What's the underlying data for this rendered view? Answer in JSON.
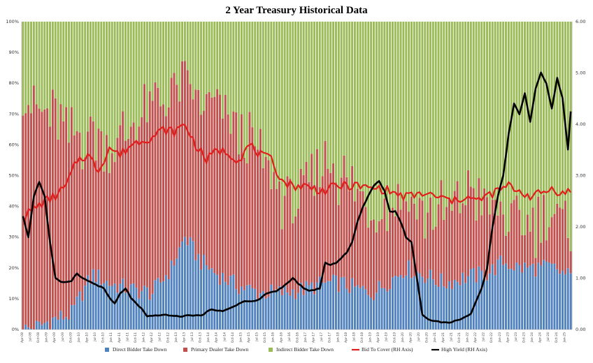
{
  "chart_data": {
    "type": "bar",
    "title": "2 Year Treasury  Historical Data",
    "ylim_left": [
      0,
      100
    ],
    "ylim_right": [
      0,
      6
    ],
    "left_ticks": [
      "0%",
      "10%",
      "20%",
      "30%",
      "40%",
      "50%",
      "60%",
      "70%",
      "80%",
      "90%",
      "100%"
    ],
    "right_ticks": [
      "0.00",
      "1.00",
      "2.00",
      "3.00",
      "4.00",
      "5.00",
      "6.00"
    ],
    "n_auctions": 204,
    "x_tick_labels": [
      "Apr-08",
      "Jul-08",
      "Oct-08",
      "Jan-09",
      "Apr-09",
      "Jul-09",
      "Oct-09",
      "Jan-10",
      "Apr-10",
      "Jul-10",
      "Oct-10",
      "Jan-11",
      "Apr-11",
      "Jul-11",
      "Oct-11",
      "Jan-12",
      "Apr-12",
      "Jul-12",
      "Oct-12",
      "Jan-13",
      "Apr-13",
      "Jul-13",
      "Oct-13",
      "Jan-14",
      "Apr-14",
      "Jul-14",
      "Oct-14",
      "Jan-15",
      "Apr-15",
      "Jul-15",
      "Oct-15",
      "Jan-16",
      "Apr-16",
      "Jul-16",
      "Oct-16",
      "Jan-17",
      "Apr-17",
      "Jul-17",
      "Oct-17",
      "Jan-18",
      "Apr-18",
      "Jul-18",
      "Oct-18",
      "Jan-19",
      "Apr-19",
      "Jul-19",
      "Oct-19",
      "Jan-20",
      "Apr-20",
      "Jul-20",
      "Oct-20",
      "Jan-21",
      "Apr-21",
      "Jul-21",
      "Oct-21",
      "Jan-22",
      "Apr-22",
      "Jul-22",
      "Oct-22",
      "Jan-23",
      "Apr-23",
      "Jul-23",
      "Oct-23",
      "Jan-24",
      "Apr-24",
      "Jul-24",
      "Oct-24",
      "Jan-25"
    ],
    "stacked_series_anchors": {
      "direct_pct": [
        [
          0,
          0
        ],
        [
          6,
          1
        ],
        [
          10,
          3
        ],
        [
          18,
          5
        ],
        [
          22,
          12
        ],
        [
          26,
          18
        ],
        [
          32,
          15
        ],
        [
          40,
          13
        ],
        [
          48,
          12
        ],
        [
          55,
          20
        ],
        [
          60,
          30
        ],
        [
          66,
          22
        ],
        [
          72,
          18
        ],
        [
          80,
          14
        ],
        [
          88,
          12
        ],
        [
          96,
          12
        ],
        [
          104,
          13
        ],
        [
          112,
          15
        ],
        [
          118,
          15
        ],
        [
          124,
          13
        ],
        [
          130,
          12
        ],
        [
          136,
          16
        ],
        [
          142,
          20
        ],
        [
          148,
          18
        ],
        [
          156,
          15
        ],
        [
          164,
          17
        ],
        [
          172,
          18
        ],
        [
          178,
          22
        ],
        [
          184,
          20
        ],
        [
          190,
          20
        ],
        [
          196,
          20
        ],
        [
          203,
          17
        ]
      ],
      "dealer_pct": [
        [
          0,
          78
        ],
        [
          6,
          68
        ],
        [
          10,
          68
        ],
        [
          16,
          60
        ],
        [
          22,
          50
        ],
        [
          28,
          45
        ],
        [
          34,
          45
        ],
        [
          42,
          55
        ],
        [
          48,
          60
        ],
        [
          54,
          58
        ],
        [
          60,
          50
        ],
        [
          66,
          50
        ],
        [
          72,
          55
        ],
        [
          80,
          50
        ],
        [
          88,
          45
        ],
        [
          96,
          30
        ],
        [
          104,
          30
        ],
        [
          112,
          40
        ],
        [
          118,
          35
        ],
        [
          124,
          30
        ],
        [
          130,
          28
        ],
        [
          136,
          25
        ],
        [
          142,
          25
        ],
        [
          148,
          20
        ],
        [
          154,
          22
        ],
        [
          160,
          25
        ],
        [
          166,
          28
        ],
        [
          172,
          22
        ],
        [
          178,
          15
        ],
        [
          184,
          14
        ],
        [
          190,
          15
        ],
        [
          196,
          16
        ],
        [
          203,
          15
        ]
      ]
    },
    "bid_to_cover_anchors": [
      [
        0,
        2.2
      ],
      [
        4,
        2.35
      ],
      [
        8,
        2.5
      ],
      [
        12,
        2.6
      ],
      [
        16,
        2.8
      ],
      [
        20,
        3.3
      ],
      [
        24,
        3.4
      ],
      [
        28,
        3.1
      ],
      [
        32,
        3.55
      ],
      [
        36,
        3.4
      ],
      [
        40,
        3.6
      ],
      [
        44,
        3.7
      ],
      [
        48,
        3.75
      ],
      [
        52,
        3.9
      ],
      [
        56,
        3.85
      ],
      [
        60,
        4.0
      ],
      [
        64,
        3.6
      ],
      [
        68,
        3.3
      ],
      [
        72,
        3.5
      ],
      [
        76,
        3.45
      ],
      [
        80,
        3.3
      ],
      [
        84,
        3.6
      ],
      [
        88,
        3.4
      ],
      [
        92,
        3.3
      ],
      [
        96,
        2.9
      ],
      [
        100,
        2.8
      ],
      [
        104,
        2.8
      ],
      [
        108,
        2.75
      ],
      [
        112,
        2.7
      ],
      [
        116,
        2.8
      ],
      [
        120,
        2.8
      ],
      [
        124,
        2.8
      ],
      [
        128,
        2.75
      ],
      [
        132,
        2.75
      ],
      [
        136,
        2.7
      ],
      [
        140,
        2.6
      ],
      [
        144,
        2.6
      ],
      [
        148,
        2.65
      ],
      [
        152,
        2.6
      ],
      [
        156,
        2.55
      ],
      [
        160,
        2.5
      ],
      [
        164,
        2.6
      ],
      [
        168,
        2.5
      ],
      [
        172,
        2.6
      ],
      [
        176,
        2.7
      ],
      [
        180,
        2.8
      ],
      [
        184,
        2.7
      ],
      [
        188,
        2.6
      ],
      [
        192,
        2.65
      ],
      [
        196,
        2.75
      ],
      [
        200,
        2.65
      ],
      [
        203,
        2.7
      ]
    ],
    "high_yield_anchors": [
      [
        0,
        2.2
      ],
      [
        2,
        1.8
      ],
      [
        4,
        2.6
      ],
      [
        6,
        2.88
      ],
      [
        8,
        2.6
      ],
      [
        10,
        1.7
      ],
      [
        12,
        1.0
      ],
      [
        14,
        0.92
      ],
      [
        16,
        0.93
      ],
      [
        18,
        0.95
      ],
      [
        20,
        1.1
      ],
      [
        22,
        1.0
      ],
      [
        24,
        0.95
      ],
      [
        26,
        0.9
      ],
      [
        28,
        0.85
      ],
      [
        30,
        0.8
      ],
      [
        32,
        0.62
      ],
      [
        34,
        0.5
      ],
      [
        36,
        0.7
      ],
      [
        38,
        0.8
      ],
      [
        40,
        0.62
      ],
      [
        42,
        0.5
      ],
      [
        44,
        0.4
      ],
      [
        46,
        0.25
      ],
      [
        50,
        0.28
      ],
      [
        54,
        0.28
      ],
      [
        58,
        0.25
      ],
      [
        62,
        0.28
      ],
      [
        66,
        0.27
      ],
      [
        70,
        0.4
      ],
      [
        74,
        0.35
      ],
      [
        78,
        0.45
      ],
      [
        82,
        0.55
      ],
      [
        86,
        0.55
      ],
      [
        88,
        0.6
      ],
      [
        90,
        0.7
      ],
      [
        94,
        0.75
      ],
      [
        98,
        0.9
      ],
      [
        100,
        1.0
      ],
      [
        102,
        0.9
      ],
      [
        104,
        0.8
      ],
      [
        106,
        0.75
      ],
      [
        110,
        0.8
      ],
      [
        112,
        1.3
      ],
      [
        114,
        1.25
      ],
      [
        116,
        1.3
      ],
      [
        118,
        1.4
      ],
      [
        120,
        1.5
      ],
      [
        122,
        1.7
      ],
      [
        124,
        2.1
      ],
      [
        126,
        2.4
      ],
      [
        128,
        2.6
      ],
      [
        130,
        2.8
      ],
      [
        132,
        2.9
      ],
      [
        134,
        2.7
      ],
      [
        136,
        2.3
      ],
      [
        138,
        2.3
      ],
      [
        140,
        2.1
      ],
      [
        142,
        1.8
      ],
      [
        144,
        1.7
      ],
      [
        146,
        1.0
      ],
      [
        148,
        0.3
      ],
      [
        150,
        0.2
      ],
      [
        154,
        0.15
      ],
      [
        158,
        0.13
      ],
      [
        162,
        0.2
      ],
      [
        166,
        0.3
      ],
      [
        170,
        0.8
      ],
      [
        172,
        1.2
      ],
      [
        174,
        2.0
      ],
      [
        176,
        2.6
      ],
      [
        178,
        3.0
      ],
      [
        180,
        3.8
      ],
      [
        182,
        4.4
      ],
      [
        184,
        4.2
      ],
      [
        186,
        4.6
      ],
      [
        188,
        4.05
      ],
      [
        190,
        4.7
      ],
      [
        192,
        5.0
      ],
      [
        194,
        4.8
      ],
      [
        196,
        4.3
      ],
      [
        198,
        4.9
      ],
      [
        200,
        4.5
      ],
      [
        202,
        3.5
      ],
      [
        203,
        4.25
      ]
    ],
    "legend": [
      {
        "label": "Direct Bidder Take Down",
        "color": "#4f81bd",
        "kind": "bar"
      },
      {
        "label": "Primary Dealer Take Down",
        "color": "#c0504d",
        "kind": "bar"
      },
      {
        "label": "Indirect Bidder Take Down",
        "color": "#9bbb59",
        "kind": "bar"
      },
      {
        "label": "Bid To Cover (RH Axis)",
        "color": "#e21d1d",
        "kind": "line"
      },
      {
        "label": "High Yield (RH Axis)",
        "color": "#000000",
        "kind": "line"
      }
    ]
  }
}
